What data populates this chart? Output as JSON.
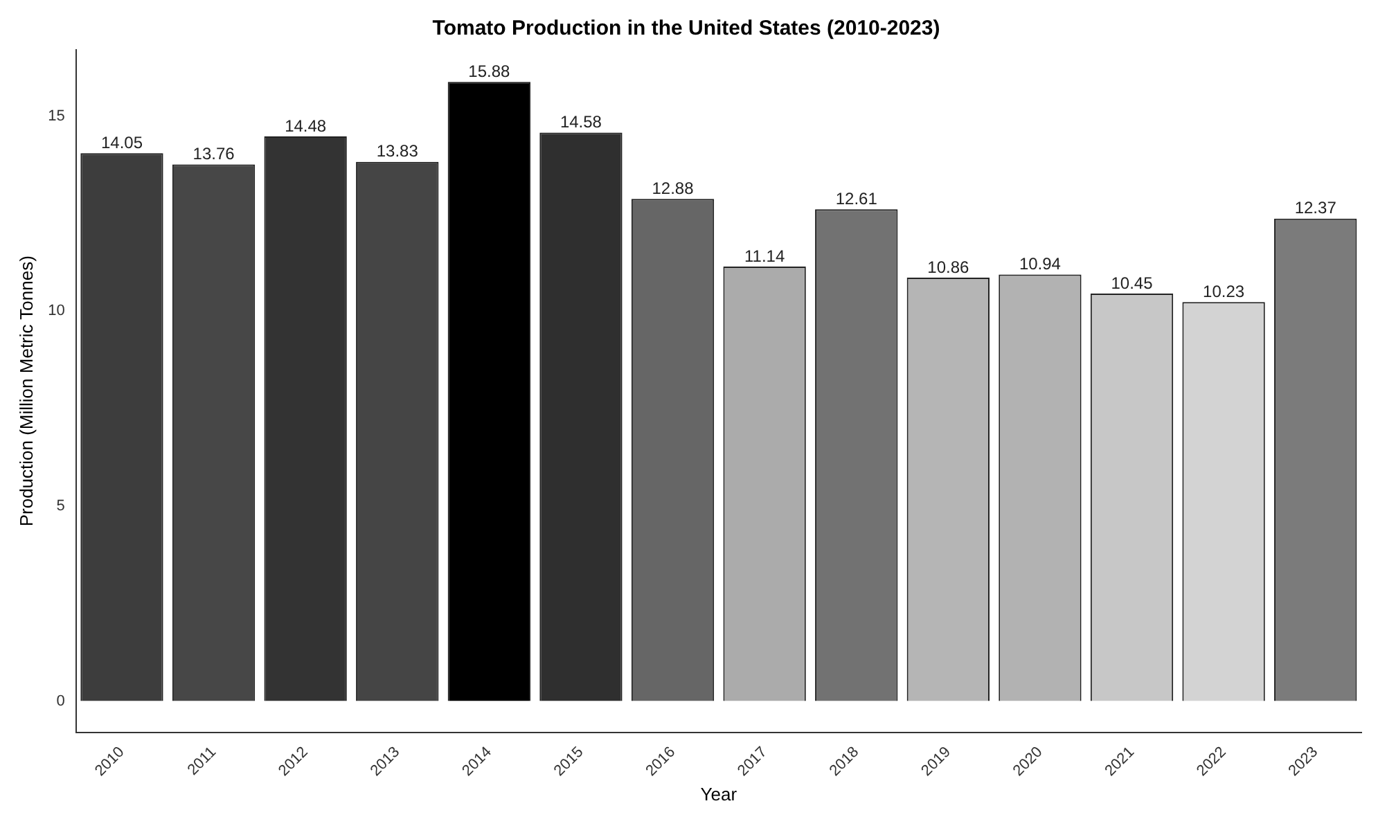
{
  "chart_data": {
    "type": "bar",
    "title": "Tomato Production in the United States (2010-2023)",
    "xlabel": "Year",
    "ylabel": "Production (Million Metric Tonnes)",
    "categories": [
      "2010",
      "2011",
      "2012",
      "2013",
      "2014",
      "2015",
      "2016",
      "2017",
      "2018",
      "2019",
      "2020",
      "2021",
      "2022",
      "2023"
    ],
    "values": [
      14.05,
      13.76,
      14.48,
      13.83,
      15.88,
      14.58,
      12.88,
      11.14,
      12.61,
      10.86,
      10.94,
      10.45,
      10.23,
      12.37
    ],
    "colors": [
      "#3d3d3d",
      "#474747",
      "#333333",
      "#454545",
      "#000000",
      "#2f2f2f",
      "#666666",
      "#ababab",
      "#727272",
      "#b5b5b5",
      "#b2b2b2",
      "#c7c7c7",
      "#d3d3d3",
      "#7b7b7b"
    ],
    "ylim": [
      -0.8,
      16.7
    ],
    "yticks": [
      0,
      5,
      10,
      15
    ],
    "data_labels": true,
    "grid": false,
    "legend": false
  }
}
